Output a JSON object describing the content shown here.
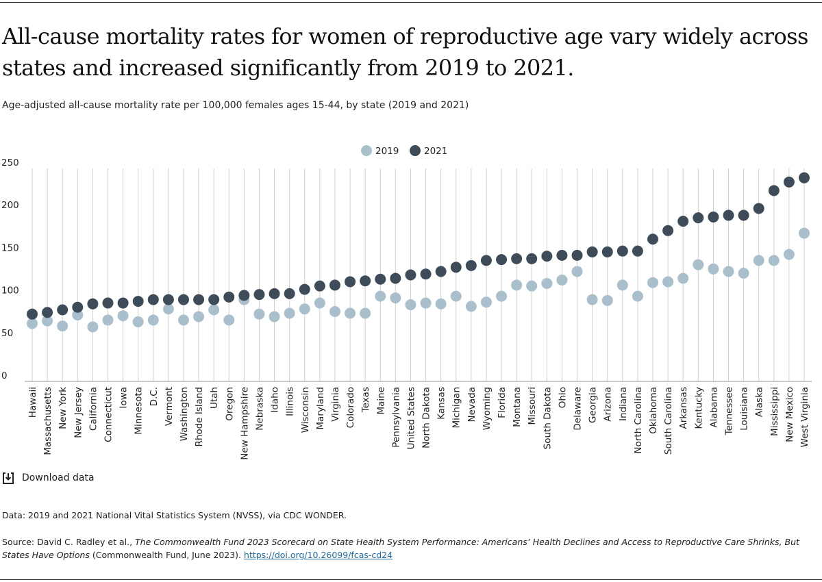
{
  "chart_data": {
    "type": "dot",
    "title": "All-cause mortality rates for women of reproductive age vary widely across states and increased significantly from 2019 to 2021.",
    "subtitle": "Age-adjusted all-cause mortality rate per 100,000 females ages 15-44, by state (2019 and 2021)",
    "categories": [
      "Hawaii",
      "Massachusetts",
      "New York",
      "New Jersey",
      "California",
      "Connecticut",
      "Iowa",
      "Minnesota",
      "D.C.",
      "Vermont",
      "Washington",
      "Rhode Island",
      "Utah",
      "Oregon",
      "New Hampshire",
      "Nebraska",
      "Idaho",
      "Illinois",
      "Wisconsin",
      "Maryland",
      "Virginia",
      "Colorado",
      "Texas",
      "Maine",
      "Pennsylvania",
      "United States",
      "North Dakota",
      "Kansas",
      "Michigan",
      "Nevada",
      "Wyoming",
      "Florida",
      "Montana",
      "Missouri",
      "South Dakota",
      "Ohio",
      "Delaware",
      "Georgia",
      "Arizona",
      "Indiana",
      "North Carolina",
      "Oklahoma",
      "South Carolina",
      "Arkansas",
      "Kentucky",
      "Alabama",
      "Tennessee",
      "Louisiana",
      "Alaska",
      "Mississippi",
      "New Mexico",
      "West Virginia"
    ],
    "series": [
      {
        "name": "2019",
        "color": "#a9c0cc",
        "values": [
          68,
          71,
          65,
          78,
          64,
          72,
          77,
          70,
          72,
          85,
          72,
          76,
          84,
          72,
          96,
          79,
          76,
          80,
          85,
          92,
          82,
          80,
          80,
          100,
          98,
          90,
          92,
          91,
          100,
          88,
          93,
          100,
          113,
          112,
          115,
          119,
          129,
          96,
          95,
          113,
          100,
          116,
          117,
          121,
          137,
          132,
          129,
          127,
          142,
          142,
          149,
          174
        ]
      },
      {
        "name": "2021",
        "color": "#3e4c5a",
        "values": [
          79,
          81,
          84,
          87,
          91,
          92,
          92,
          94,
          96,
          96,
          96,
          96,
          96,
          99,
          101,
          102,
          103,
          103,
          108,
          112,
          113,
          117,
          118,
          120,
          121,
          125,
          126,
          129,
          134,
          136,
          142,
          143,
          144,
          144,
          147,
          148,
          148,
          152,
          152,
          153,
          153,
          167,
          177,
          188,
          192,
          193,
          195,
          195,
          203,
          224,
          234,
          239
        ]
      }
    ],
    "ylim": [
      0,
      250
    ],
    "yticks": [
      0,
      50,
      100,
      150,
      200,
      250
    ],
    "grid": true,
    "legend": "top"
  },
  "download": "Download data",
  "notes": {
    "data": "Data: 2019 and 2021 National Vital Statistics System (NVSS), via CDC WONDER.",
    "source_prefix": "Source: David C. Radley et al.,",
    "source_title": "The Commonwealth Fund 2023 Scorecard on State Health System Performance: Americans’ Health Declines and Access to Reproductive Care Shrinks, But States Have Options",
    "source_suffix": "(Commonwealth Fund, June 2023).",
    "source_link": "https://doi.org/10.26099/fcas-cd24"
  }
}
